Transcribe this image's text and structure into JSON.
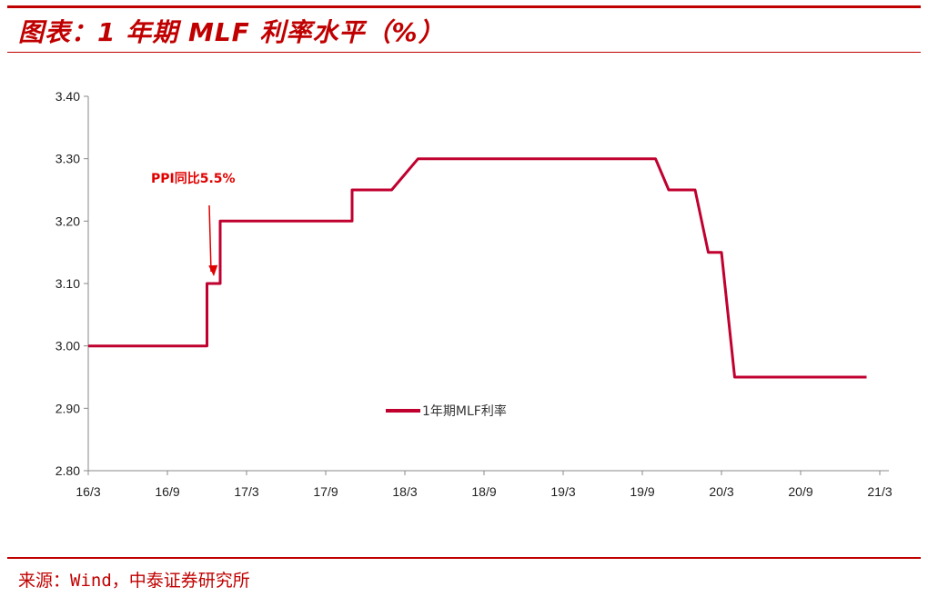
{
  "header": {
    "title": "图表：1 年期 MLF 利率水平（%）"
  },
  "footer": {
    "source": "来源：Wind，中泰证券研究所"
  },
  "colors": {
    "accent": "#c00000",
    "series": "#c0002f",
    "annotation": "#e00000",
    "axis": "#888888"
  },
  "chart_data": {
    "type": "line",
    "title": "",
    "xlabel": "",
    "ylabel": "",
    "ylim": [
      2.8,
      3.4
    ],
    "yticks": [
      "3.40",
      "3.30",
      "3.20",
      "3.10",
      "3.00",
      "2.90",
      "2.80"
    ],
    "xticks": [
      "16/3",
      "16/9",
      "17/3",
      "17/9",
      "18/3",
      "18/9",
      "19/3",
      "19/9",
      "20/3",
      "20/9",
      "21/3"
    ],
    "xlim": [
      "2016-03",
      "2021-03"
    ],
    "grid": false,
    "legend_position": "center",
    "series": [
      {
        "name": "1年期MLF利率",
        "points": [
          [
            "2016-03",
            3.0
          ],
          [
            "2016-12",
            3.0
          ],
          [
            "2016-12",
            3.1
          ],
          [
            "2017-01",
            3.1
          ],
          [
            "2017-01",
            3.2
          ],
          [
            "2017-11",
            3.2
          ],
          [
            "2017-11",
            3.25
          ],
          [
            "2018-02",
            3.25
          ],
          [
            "2018-04",
            3.3
          ],
          [
            "2019-10",
            3.3
          ],
          [
            "2019-11",
            3.25
          ],
          [
            "2020-01",
            3.25
          ],
          [
            "2020-02",
            3.15
          ],
          [
            "2020-03",
            3.15
          ],
          [
            "2020-04",
            2.95
          ],
          [
            "2021-02",
            2.95
          ]
        ]
      }
    ],
    "annotations": [
      {
        "text": "PPI同比5.5%",
        "target": [
          "2017-01",
          3.1
        ]
      }
    ]
  }
}
